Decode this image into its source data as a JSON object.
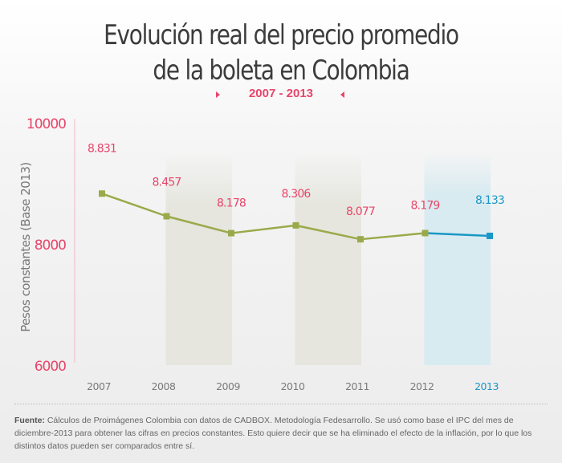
{
  "header": {
    "title_line1": "Evolución real del precio promedio",
    "title_line2": "de la boleta en Colombia",
    "subtitle": "2007 - 2013"
  },
  "colors": {
    "accent_pink": "#e8456a",
    "series_green": "#9aaa4a",
    "series_blue": "#1a97c6",
    "band_gray": "#e6e6df",
    "band_blue": "#d8ebf1",
    "axis_text_gray": "#7a7a7a"
  },
  "chart_data": {
    "type": "line",
    "title": "Evolución real del precio promedio de la boleta en Colombia",
    "subtitle": "2007 - 2013",
    "xlabel": "",
    "ylabel": "Pesos constantes (Base 2013)",
    "ylim": [
      6000,
      10000
    ],
    "yticks": [
      "10000",
      "8000",
      "6000"
    ],
    "categories": [
      "2007",
      "2008",
      "2009",
      "2010",
      "2011",
      "2012",
      "2013"
    ],
    "series": [
      {
        "name": "Precio promedio",
        "values": [
          8831,
          8457,
          8178,
          8306,
          8077,
          8179,
          8133
        ]
      }
    ],
    "data_labels": [
      "8.831",
      "8.457",
      "8.178",
      "8.306",
      "8.077",
      "8.179",
      "8.133"
    ],
    "highlight_category": "2013",
    "shaded_bands": [
      [
        "2008",
        "2009"
      ],
      [
        "2010",
        "2011"
      ],
      [
        "2012",
        "2013"
      ]
    ],
    "grid": false,
    "legend": "none"
  },
  "footer": {
    "source_label": "Fuente:",
    "source_text": " Cálculos de Proimágenes Colombia con datos de CADBOX. Metodología Fedesarrollo. Se usó como base el IPC del mes de diciembre-2013 para obtener las cifras en precios constantes. Esto quiere decir que se ha eliminado el efecto de la inflación, por lo que los distintos datos pueden ser comparados entre sí."
  }
}
